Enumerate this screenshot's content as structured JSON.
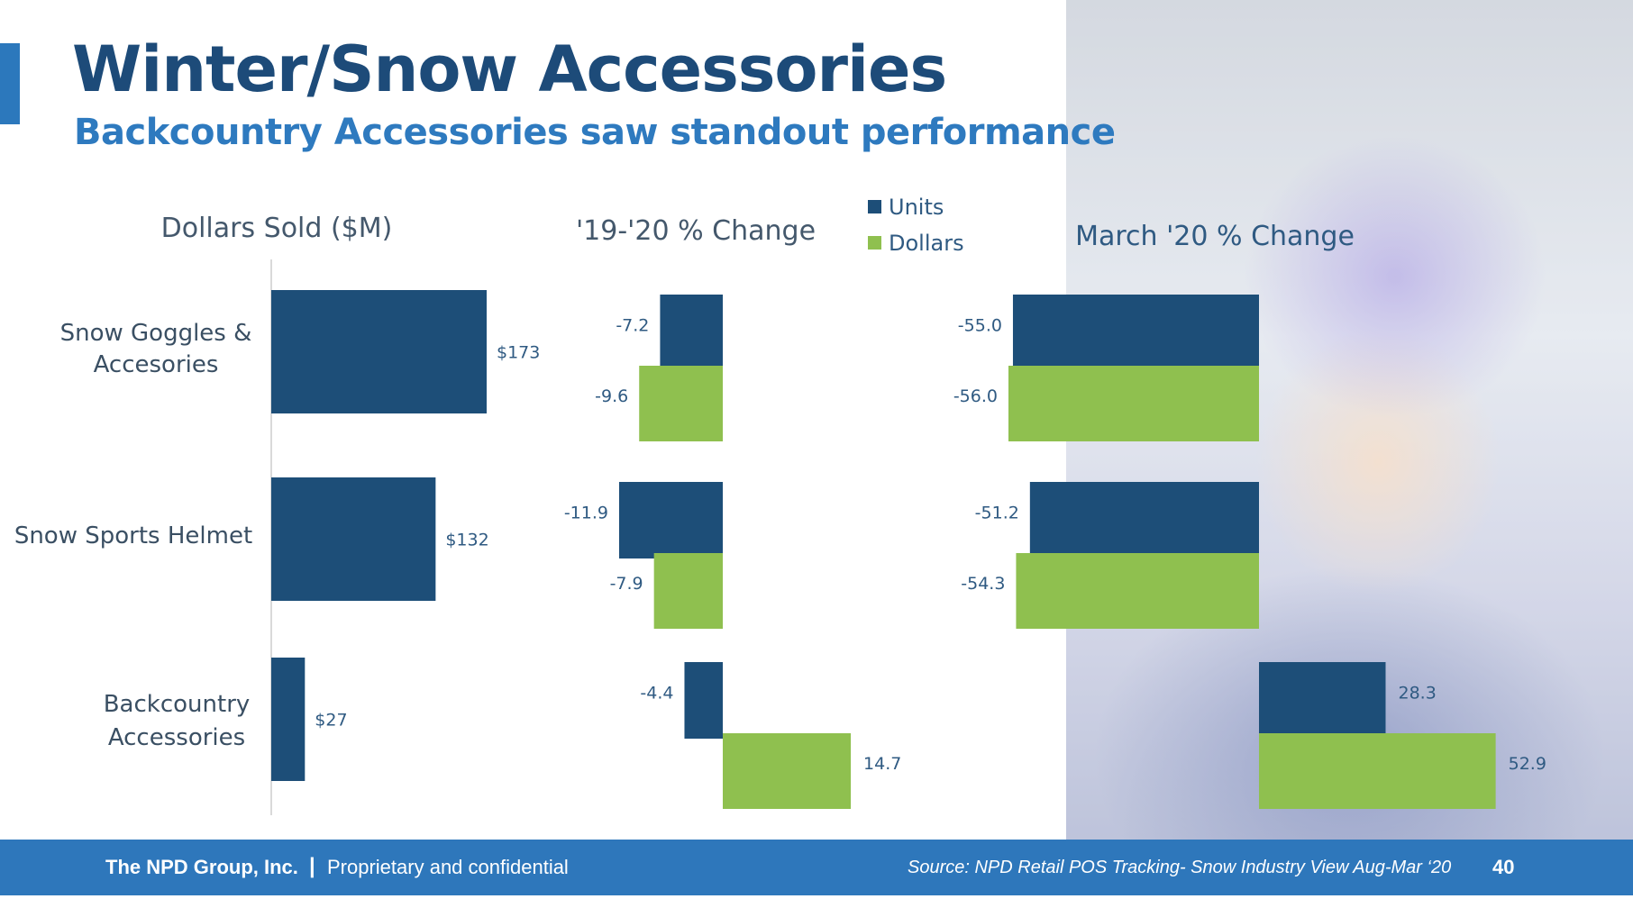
{
  "header": {
    "title": "Winter/Snow Accessories",
    "subtitle": "Backcountry Accessories saw standout performance"
  },
  "legend": {
    "units_label": "Units",
    "dollars_label": "Dollars"
  },
  "colors": {
    "units": "#1d4e78",
    "dollars": "#8fc04f",
    "footer": "#2e77bb",
    "title": "#1d4b79",
    "subtitle": "#2e7abf",
    "label": "#2f5a82"
  },
  "chart_data": [
    {
      "type": "bar",
      "orientation": "horizontal",
      "title": "Dollars Sold ($M)",
      "categories": [
        "Snow Goggles & Accesories",
        "Snow Sports Helmet",
        "Backcountry Accessories"
      ],
      "series": [
        {
          "values": [
            173,
            132,
            27
          ],
          "labels": [
            "$173",
            "$132",
            "$27"
          ]
        }
      ]
    },
    {
      "type": "bar",
      "orientation": "horizontal",
      "title": "'19-'20 % Change",
      "categories": [
        "Snow Goggles & Accesories",
        "Snow Sports Helmet",
        "Backcountry Accessories"
      ],
      "series": [
        {
          "name": "Units",
          "values": [
            -7.2,
            -11.9,
            -4.4
          ],
          "labels": [
            "-7.2",
            "-11.9",
            "-4.4"
          ]
        },
        {
          "name": "Dollars",
          "values": [
            -9.6,
            -7.9,
            14.7
          ],
          "labels": [
            "-9.6",
            "-7.9",
            "14.7"
          ]
        }
      ]
    },
    {
      "type": "bar",
      "orientation": "horizontal",
      "title": "March '20 % Change",
      "categories": [
        "Snow Goggles & Accesories",
        "Snow Sports Helmet",
        "Backcountry Accessories"
      ],
      "series": [
        {
          "name": "Units",
          "values": [
            -55.0,
            -51.2,
            28.3
          ],
          "labels": [
            "-55.0",
            "-51.2",
            "28.3"
          ]
        },
        {
          "name": "Dollars",
          "values": [
            -56.0,
            -54.3,
            52.9
          ],
          "labels": [
            "-56.0",
            "-54.3",
            "52.9"
          ]
        }
      ]
    }
  ],
  "footer": {
    "company": "The NPD Group, Inc.",
    "separator": "|",
    "confidential": "Proprietary and confidential",
    "source": "Source: NPD Retail POS Tracking- Snow Industry View Aug-Mar ‘20",
    "page_number": "40"
  }
}
